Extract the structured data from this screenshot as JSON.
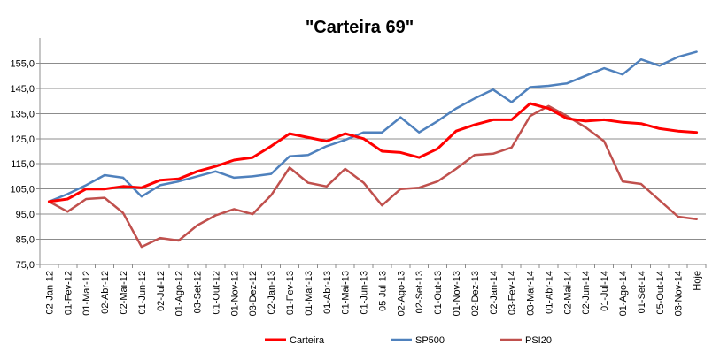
{
  "chart_data": {
    "type": "line",
    "title": "\"Carteira 69\"",
    "xlabel": "",
    "ylabel": "",
    "ylim": [
      75,
      165
    ],
    "yticks": [
      "75,0",
      "85,0",
      "95,0",
      "105,0",
      "115,0",
      "125,0",
      "135,0",
      "145,0",
      "155,0"
    ],
    "ytick_values": [
      75,
      85,
      95,
      105,
      115,
      125,
      135,
      145,
      155
    ],
    "grid": "horizontal",
    "legend": "bottom",
    "categories": [
      "02-Jan-12",
      "01-Fev-12",
      "01-Mar-12",
      "02-Abr-12",
      "02-Mai-12",
      "01-Jun-12",
      "02-Jul-12",
      "01-Ago-12",
      "03-Set-12",
      "01-Out-12",
      "01-Nov-12",
      "03-Dez-12",
      "02-Jan-13",
      "01-Fev-13",
      "01-Mar-13",
      "01-Abr-13",
      "01-Mai-13",
      "01-Jun-13",
      "05-Jul-13",
      "02-Ago-13",
      "02-Set-13",
      "01-Out-13",
      "01-Nov-13",
      "02-Dez-13",
      "02-Jan-14",
      "03-Fev-14",
      "03-Mar-14",
      "01-Abr-14",
      "02-Mai-14",
      "02-Jun-14",
      "01-Jul-14",
      "01-Ago-14",
      "01-Set-14",
      "05-Out-14",
      "03-Nov-14",
      "Hoje"
    ],
    "series": [
      {
        "name": "Carteira",
        "color": "#ff0000",
        "width": 3,
        "values": [
          100,
          101,
          105,
          105,
          106,
          105.5,
          108.5,
          109,
          112,
          114,
          116.5,
          117.5,
          122,
          127,
          125.5,
          124,
          127,
          125,
          120,
          119.5,
          117.5,
          121,
          128,
          130.5,
          132.5,
          132.5,
          139,
          137,
          133,
          132,
          132.5,
          131.5,
          131,
          129,
          128,
          127.5
        ]
      },
      {
        "name": "SP500",
        "color": "#4f81bd",
        "width": 2.5,
        "values": [
          100,
          103,
          106.5,
          110.5,
          109.5,
          102,
          106.5,
          108,
          110,
          112,
          109.5,
          110,
          111,
          118,
          118.5,
          122,
          124.5,
          127.5,
          127.5,
          133.5,
          127.5,
          132,
          137,
          141,
          144.5,
          139.5,
          145.5,
          146,
          147,
          150,
          153,
          150.5,
          156.5,
          154,
          157.5,
          159.5
        ]
      },
      {
        "name": "PSI20",
        "color": "#c0504d",
        "width": 2.5,
        "values": [
          100,
          96,
          101,
          101.5,
          95.5,
          82,
          85.5,
          84.5,
          90.5,
          94.5,
          97,
          95,
          102.5,
          113.5,
          107.5,
          106,
          113,
          107.5,
          98.5,
          105,
          105.5,
          108,
          113,
          118.5,
          119,
          121.5,
          134,
          138,
          134,
          129.5,
          124,
          108,
          107,
          100.5,
          94,
          93
        ]
      }
    ]
  }
}
